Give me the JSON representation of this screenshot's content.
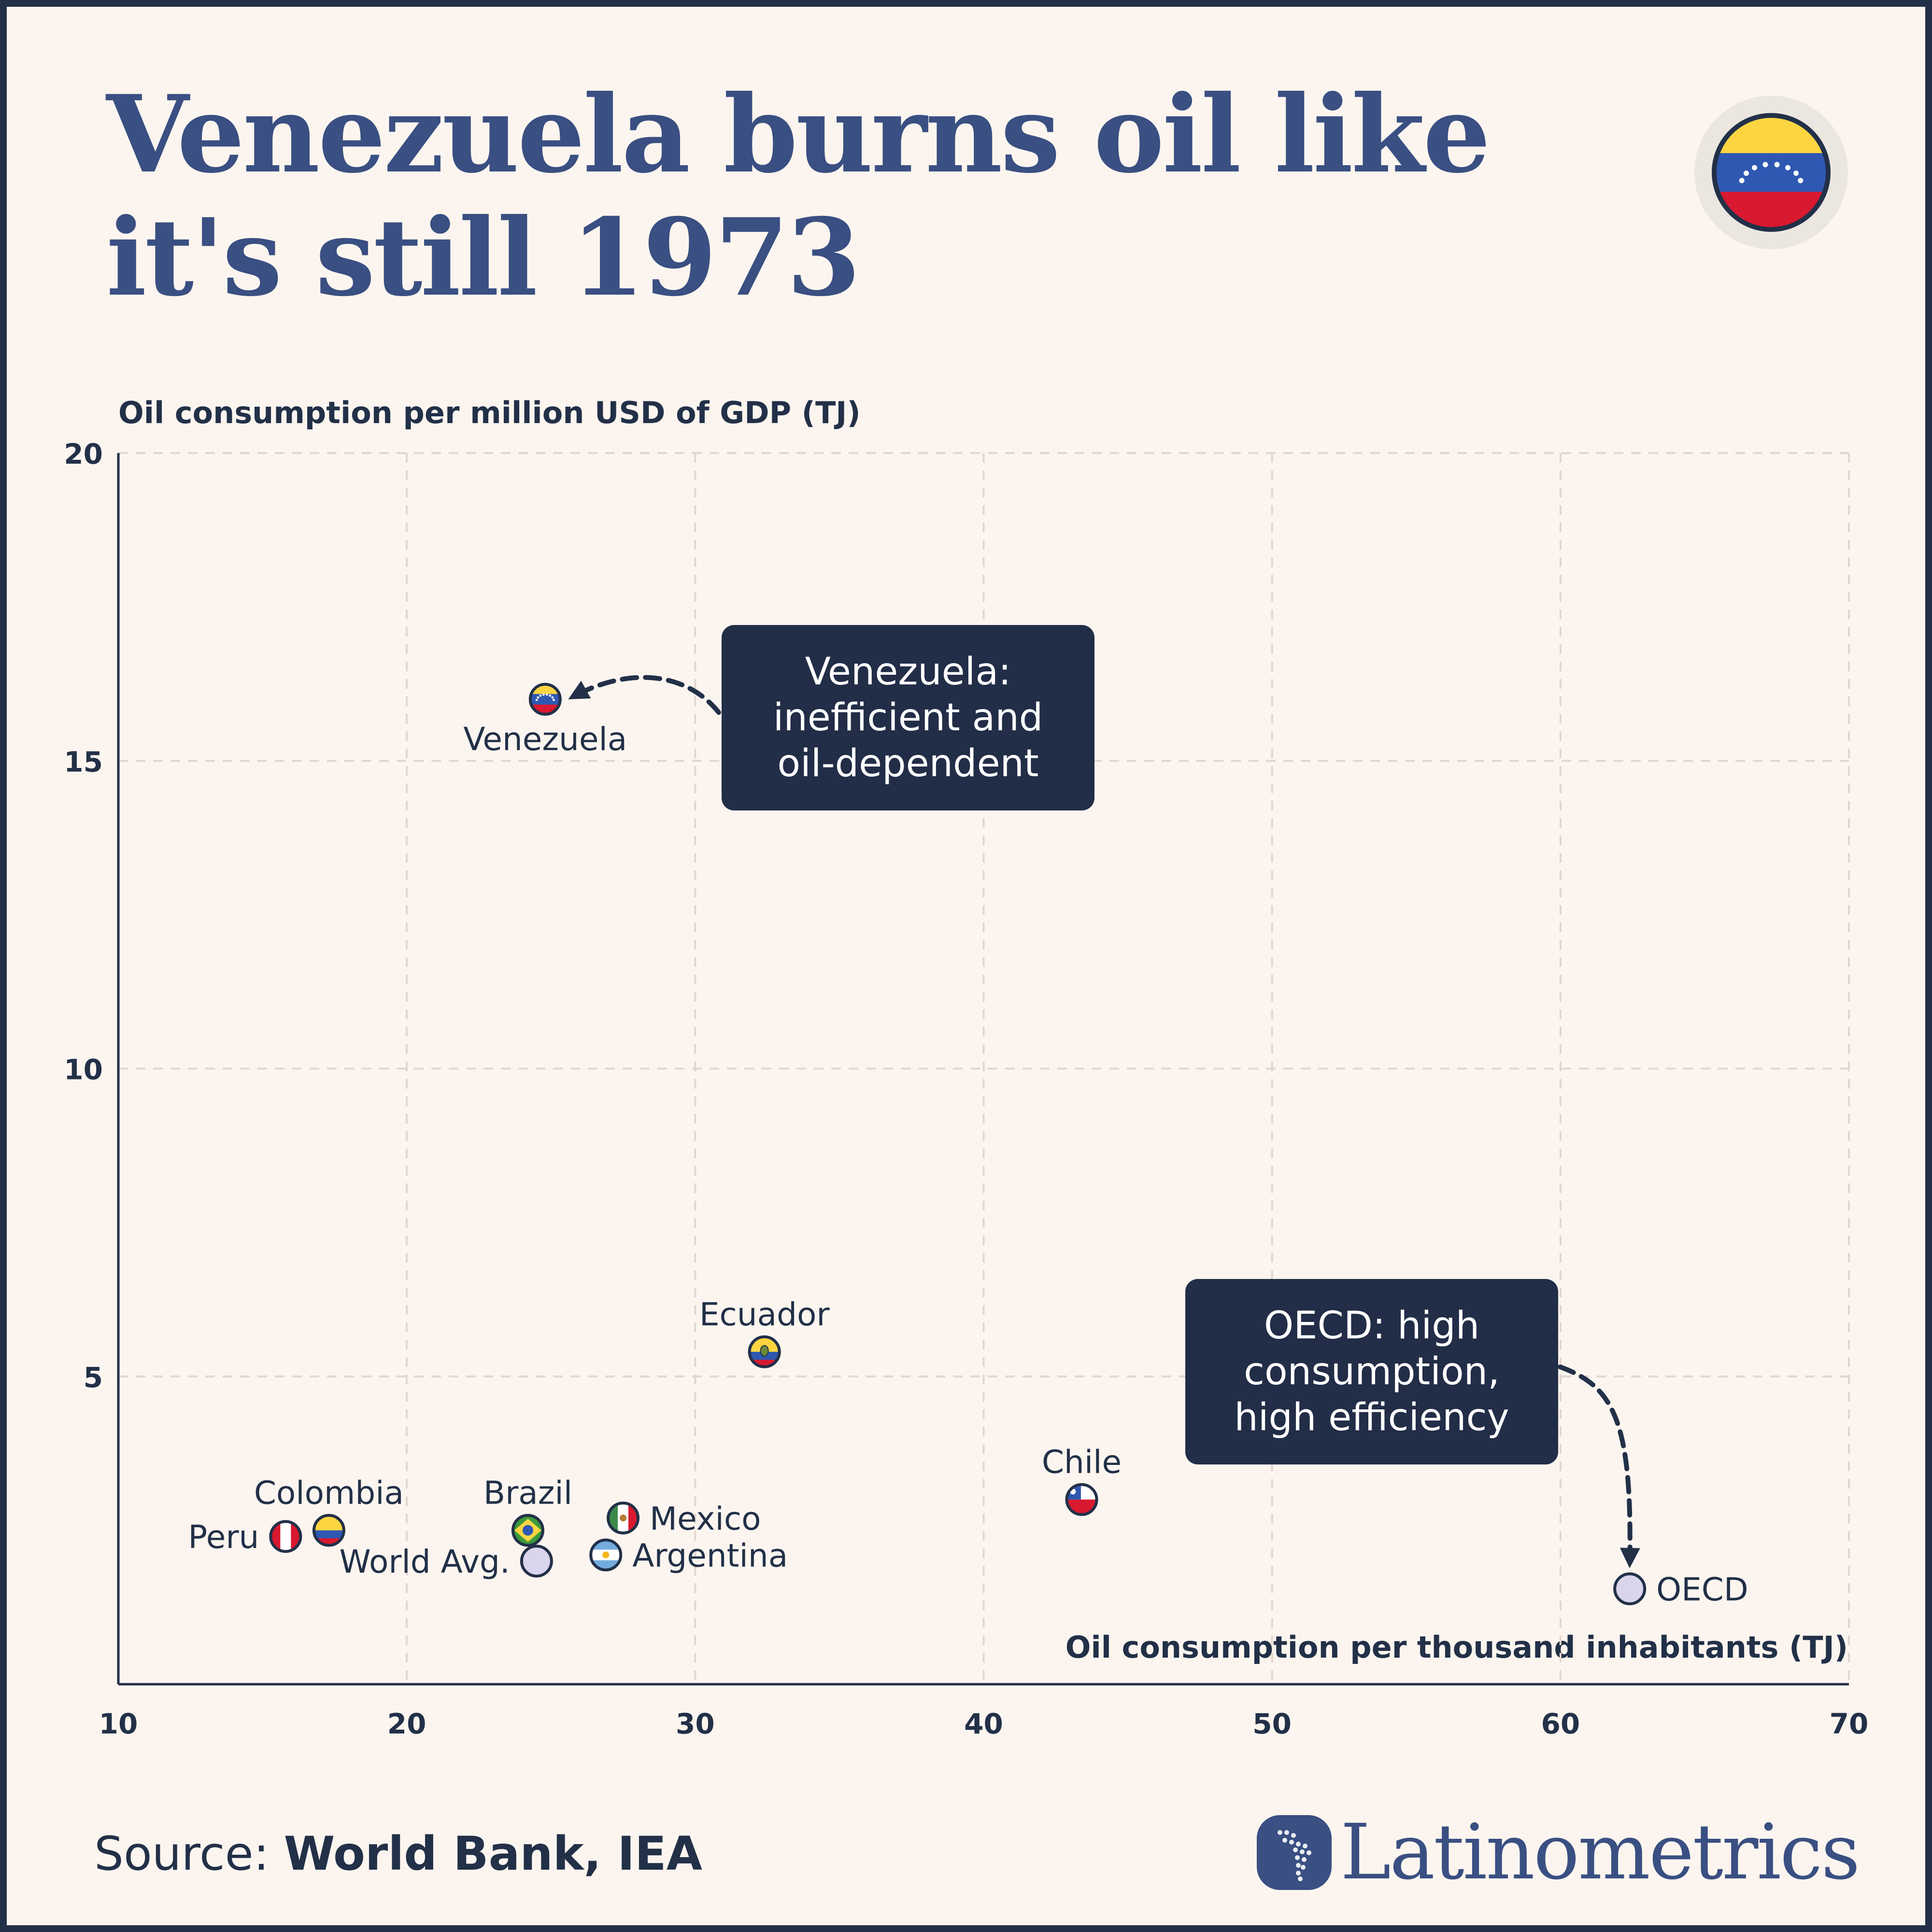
{
  "title_line1": "Venezuela burns oil like",
  "title_line2": "it's still 1973",
  "source_prefix": "Source: ",
  "source_text": "World Bank, IEA",
  "brand": "Latinometrics",
  "colors": {
    "background": "#fcf5ef",
    "border": "#223048",
    "title": "#3a4f82",
    "text": "#223048",
    "grid": "#e2d6cc",
    "callout_bg": "#222d47",
    "callout_text": "#ffffff",
    "aggregate_marker": "#d9d5ec"
  },
  "chart_data": {
    "type": "scatter",
    "title": "Venezuela burns oil like it's still 1973",
    "xlabel": "Oil consumption per thousand inhabitants (TJ)",
    "ylabel": "Oil consumption per million USD of GDP (TJ)",
    "xlim": [
      10,
      70
    ],
    "ylim": [
      0,
      20
    ],
    "xticks": [
      10,
      20,
      30,
      40,
      50,
      60,
      70
    ],
    "yticks": [
      5,
      10,
      15,
      20
    ],
    "grid": true,
    "points": [
      {
        "label": "Venezuela",
        "x": 24.8,
        "y": 16.0,
        "icon": "venezuela-flag-icon",
        "label_pos": "below"
      },
      {
        "label": "Ecuador",
        "x": 32.4,
        "y": 5.4,
        "icon": "ecuador-flag-icon",
        "label_pos": "above"
      },
      {
        "label": "Chile",
        "x": 43.4,
        "y": 3.0,
        "icon": "chile-flag-icon",
        "label_pos": "above"
      },
      {
        "label": "Colombia",
        "x": 17.3,
        "y": 2.5,
        "icon": "colombia-flag-icon",
        "label_pos": "above"
      },
      {
        "label": "Peru",
        "x": 15.8,
        "y": 2.4,
        "icon": "peru-flag-icon",
        "label_pos": "left"
      },
      {
        "label": "Brazil",
        "x": 24.2,
        "y": 2.5,
        "icon": "brazil-flag-icon",
        "label_pos": "above"
      },
      {
        "label": "World Avg.",
        "x": 24.5,
        "y": 2.0,
        "icon": "aggregate-dot-icon",
        "label_pos": "left"
      },
      {
        "label": "Mexico",
        "x": 27.5,
        "y": 2.7,
        "icon": "mexico-flag-icon",
        "label_pos": "right"
      },
      {
        "label": "Argentina",
        "x": 26.9,
        "y": 2.1,
        "icon": "argentina-flag-icon",
        "label_pos": "right"
      },
      {
        "label": "OECD",
        "x": 62.4,
        "y": 1.55,
        "icon": "aggregate-dot-icon",
        "label_pos": "right"
      }
    ],
    "annotations": [
      {
        "lines": [
          "Venezuela:",
          "inefficient and",
          "oil-dependent"
        ],
        "target": "Venezuela"
      },
      {
        "lines": [
          "OECD: high",
          "consumption,",
          "high efficiency"
        ],
        "target": "OECD"
      }
    ]
  }
}
